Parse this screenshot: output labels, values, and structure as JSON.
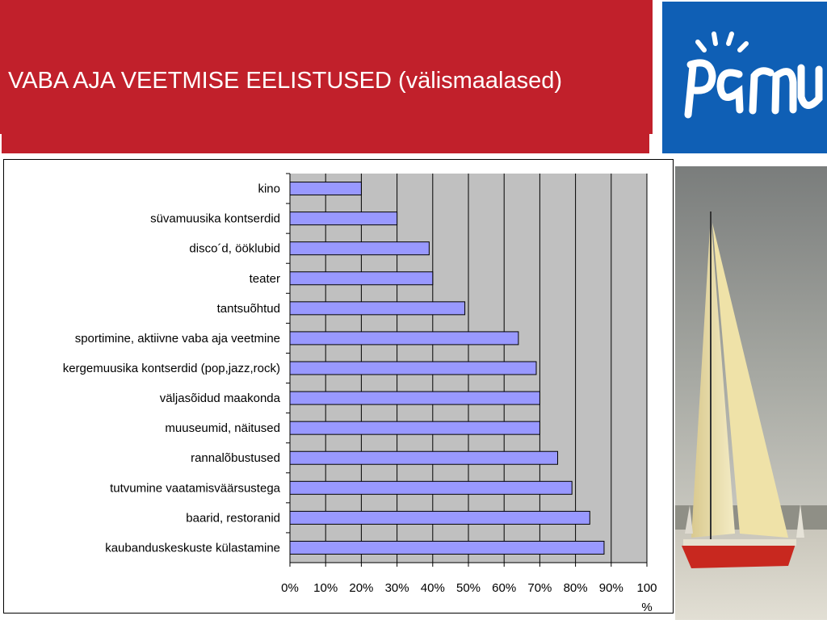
{
  "header": {
    "title": "VABA AJA VEETMISE EELISTUSED (välismaalased)",
    "logo_text": "pärnu"
  },
  "colors": {
    "header_red": "#c1202b",
    "logo_blue": "#0f5fb5",
    "bar_fill": "#9999ff",
    "plot_bg": "#c0c0c0"
  },
  "chart_data": {
    "type": "bar",
    "orientation": "horizontal",
    "categories": [
      "kino",
      "süvamuusika kontserdid",
      "disco´d, ööklubid",
      "teater",
      "tantsuõhtud",
      "sportimine, aktiivne vaba aja veetmine",
      "kergemuusika kontserdid (pop,jazz,rock)",
      "väljasõidud maakonda",
      "muuseumid, näitused",
      "rannalõbustused",
      "tutvumine vaatamisväärsustega",
      "baarid, restoranid",
      "kaubanduskeskuste külastamine"
    ],
    "values": [
      20,
      30,
      39,
      40,
      49,
      64,
      69,
      70,
      70,
      75,
      79,
      84,
      88
    ],
    "x_ticks": [
      "0%",
      "10%",
      "20%",
      "30%",
      "40%",
      "50%",
      "60%",
      "70%",
      "80%",
      "90%",
      "100%"
    ],
    "xlim": [
      0,
      100
    ],
    "grid": true,
    "legend": "none"
  }
}
